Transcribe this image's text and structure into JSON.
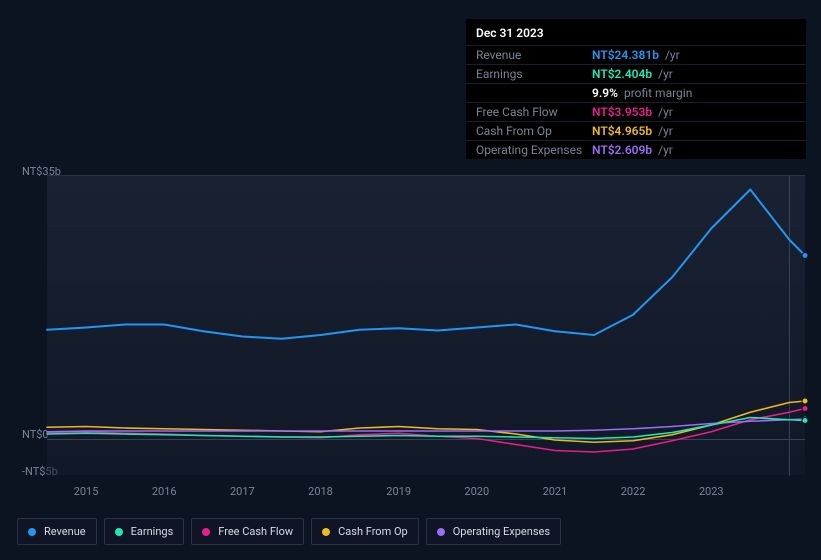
{
  "tooltip": {
    "date": "Dec 31 2023",
    "rows": [
      {
        "label": "Revenue",
        "value": "NT$24.381b",
        "unit": "/yr",
        "color": "#2196f3"
      },
      {
        "label": "Earnings",
        "value": "NT$2.404b",
        "unit": "/yr",
        "color": "#1de9b6"
      },
      {
        "label": "",
        "value": "9.9%",
        "unit": "profit margin",
        "color": "#ffffff"
      },
      {
        "label": "Free Cash Flow",
        "value": "NT$3.953b",
        "unit": "/yr",
        "color": "#e91e8c"
      },
      {
        "label": "Cash From Op",
        "value": "NT$4.965b",
        "unit": "/yr",
        "color": "#eeb91e"
      },
      {
        "label": "Operating Expenses",
        "value": "NT$2.609b",
        "unit": "/yr",
        "color": "#9c6cf7"
      }
    ]
  },
  "chart": {
    "type": "line",
    "ylim": [
      -5,
      35
    ],
    "yticks": [
      {
        "v": 35,
        "label": "NT$35b"
      },
      {
        "v": 0,
        "label": "NT$0"
      },
      {
        "v": -5,
        "label": "-NT$5b"
      }
    ],
    "xlim": [
      2014.5,
      2024.2
    ],
    "xticks": [
      2015,
      2016,
      2017,
      2018,
      2019,
      2020,
      2021,
      2022,
      2023
    ],
    "vline_x": 2024.0,
    "background_grad_top": "rgba(35,45,65,0.55)",
    "background_grad_bottom": "rgba(20,28,45,0.55)",
    "grid_color": "#3a4255",
    "series": [
      {
        "name": "Revenue",
        "color": "#2196f3",
        "width": 2,
        "x": [
          2014.5,
          2015,
          2015.5,
          2016,
          2016.5,
          2017,
          2017.5,
          2018,
          2018.5,
          2019,
          2019.5,
          2020,
          2020.5,
          2021,
          2021.5,
          2022,
          2022.5,
          2023,
          2023.5,
          2024.0,
          2024.2
        ],
        "y": [
          14.5,
          14.8,
          15.2,
          15.2,
          14.3,
          13.6,
          13.3,
          13.8,
          14.5,
          14.7,
          14.4,
          14.8,
          15.2,
          14.3,
          13.8,
          16.5,
          21.5,
          28.0,
          33.2,
          26.5,
          24.4
        ]
      },
      {
        "name": "Cash From Op",
        "color": "#eeb91e",
        "width": 1.6,
        "x": [
          2014.5,
          2015,
          2015.5,
          2016,
          2016.5,
          2017,
          2017.5,
          2018,
          2018.5,
          2019,
          2019.5,
          2020,
          2020.5,
          2021,
          2021.5,
          2022,
          2022.5,
          2023,
          2023.5,
          2024.0,
          2024.2
        ],
        "y": [
          1.5,
          1.6,
          1.4,
          1.3,
          1.2,
          1.1,
          1.0,
          0.9,
          1.4,
          1.6,
          1.3,
          1.2,
          0.6,
          -0.2,
          -0.5,
          -0.3,
          0.5,
          1.8,
          3.5,
          4.8,
          5.0
        ]
      },
      {
        "name": "Free Cash Flow",
        "color": "#e91e8c",
        "width": 1.6,
        "x": [
          2014.5,
          2015,
          2015.5,
          2016,
          2016.5,
          2017,
          2017.5,
          2018,
          2018.5,
          2019,
          2019.5,
          2020,
          2020.5,
          2021,
          2021.5,
          2022,
          2022.5,
          2023,
          2023.5,
          2024.0,
          2024.2
        ],
        "y": [
          0.8,
          0.9,
          0.7,
          0.6,
          0.4,
          0.3,
          0.2,
          0.1,
          0.5,
          0.7,
          0.3,
          0.0,
          -0.8,
          -1.6,
          -1.8,
          -1.4,
          -0.3,
          0.9,
          2.5,
          3.5,
          4.0
        ]
      },
      {
        "name": "Operating Expenses",
        "color": "#9c6cf7",
        "width": 1.6,
        "x": [
          2014.5,
          2015,
          2015.5,
          2016,
          2016.5,
          2017,
          2017.5,
          2018,
          2018.5,
          2019,
          2019.5,
          2020,
          2020.5,
          2021,
          2021.5,
          2022,
          2022.5,
          2023,
          2023.5,
          2024.0,
          2024.2
        ],
        "y": [
          0.9,
          1.0,
          1.0,
          1.0,
          1.0,
          1.0,
          1.0,
          1.0,
          1.0,
          1.0,
          1.0,
          1.0,
          1.0,
          1.0,
          1.1,
          1.3,
          1.6,
          2.0,
          2.3,
          2.5,
          2.6
        ]
      },
      {
        "name": "Earnings",
        "color": "#1de9b6",
        "width": 1.6,
        "x": [
          2014.5,
          2015,
          2015.5,
          2016,
          2016.5,
          2017,
          2017.5,
          2018,
          2018.5,
          2019,
          2019.5,
          2020,
          2020.5,
          2021,
          2021.5,
          2022,
          2022.5,
          2023,
          2023.5,
          2024.0,
          2024.2
        ],
        "y": [
          0.6,
          0.7,
          0.6,
          0.5,
          0.4,
          0.3,
          0.2,
          0.2,
          0.3,
          0.4,
          0.3,
          0.3,
          0.2,
          0.1,
          0.0,
          0.2,
          0.8,
          1.8,
          2.8,
          2.5,
          2.4
        ]
      }
    ]
  },
  "legend": [
    {
      "label": "Revenue",
      "color": "#2196f3"
    },
    {
      "label": "Earnings",
      "color": "#1de9b6"
    },
    {
      "label": "Free Cash Flow",
      "color": "#e91e8c"
    },
    {
      "label": "Cash From Op",
      "color": "#eeb91e"
    },
    {
      "label": "Operating Expenses",
      "color": "#9c6cf7"
    }
  ]
}
